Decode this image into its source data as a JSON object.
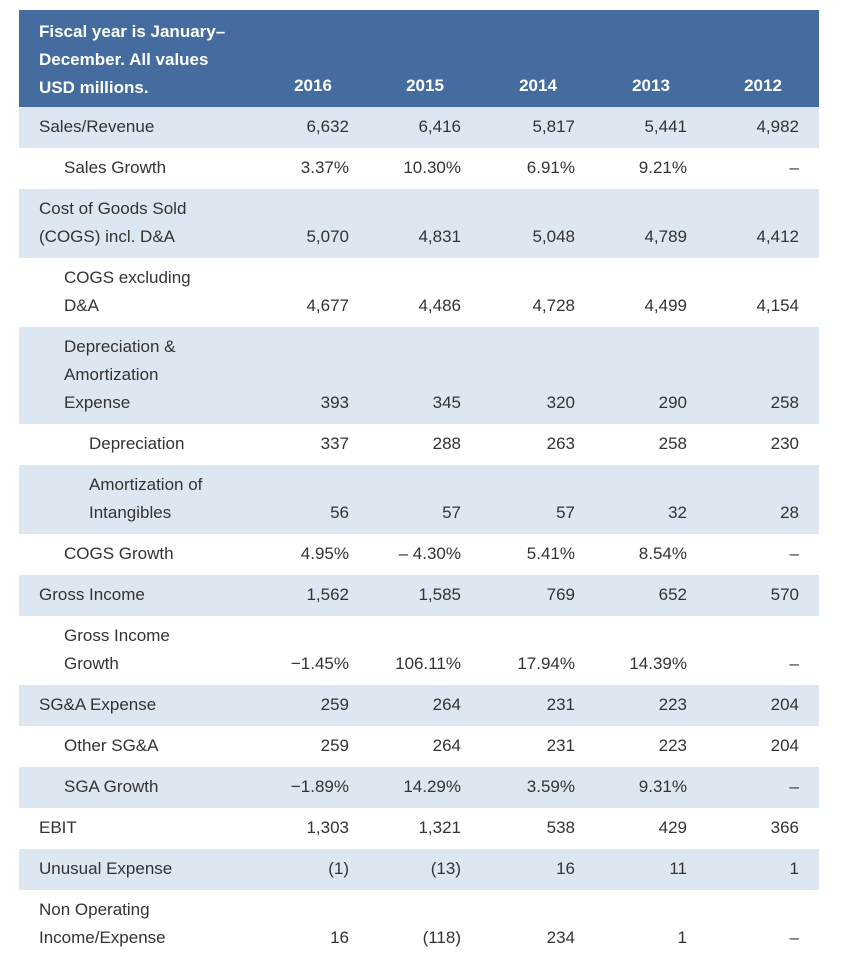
{
  "header": {
    "title": "Fiscal year is January–December. All values USD millions.",
    "years": [
      "2016",
      "2015",
      "2014",
      "2013",
      "2012"
    ]
  },
  "rows": [
    {
      "label": "Sales/Revenue",
      "values": [
        "6,632",
        "6,416",
        "5,817",
        "5,441",
        "4,982"
      ]
    },
    {
      "label": "Sales Growth",
      "values": [
        "3.37%",
        "10.30%",
        "6.91%",
        "9.21%",
        "–"
      ]
    },
    {
      "label": "Cost of Goods Sold (COGS) incl. D&A",
      "values": [
        "5,070",
        "4,831",
        "5,048",
        "4,789",
        "4,412"
      ]
    },
    {
      "label": "COGS excluding D&A",
      "values": [
        "4,677",
        "4,486",
        "4,728",
        "4,499",
        "4,154"
      ]
    },
    {
      "label": "Depreciation & Amortization Expense",
      "values": [
        "393",
        "345",
        "320",
        "290",
        "258"
      ]
    },
    {
      "label": "Depreciation",
      "values": [
        "337",
        "288",
        "263",
        "258",
        "230"
      ]
    },
    {
      "label": "Amortization of Intangibles",
      "values": [
        "56",
        "57",
        "57",
        "32",
        "28"
      ]
    },
    {
      "label": "COGS Growth",
      "values": [
        "4.95%",
        "– 4.30%",
        "5.41%",
        "8.54%",
        "–"
      ]
    },
    {
      "label": "Gross Income",
      "values": [
        "1,562",
        "1,585",
        "769",
        "652",
        "570"
      ]
    },
    {
      "label": "Gross Income Growth",
      "values": [
        "−1.45%",
        "106.11%",
        "17.94%",
        "14.39%",
        "–"
      ]
    },
    {
      "label": "SG&A Expense",
      "values": [
        "259",
        "264",
        "231",
        "223",
        "204"
      ]
    },
    {
      "label": "Other SG&A",
      "values": [
        "259",
        "264",
        "231",
        "223",
        "204"
      ]
    },
    {
      "label": "SGA Growth",
      "values": [
        "−1.89%",
        "14.29%",
        "3.59%",
        "9.31%",
        "–"
      ]
    },
    {
      "label": "EBIT",
      "values": [
        "1,303",
        "1,321",
        "538",
        "429",
        "366"
      ]
    },
    {
      "label": "Unusual Expense",
      "values": [
        "(1)",
        "(13)",
        "16",
        "11",
        "1"
      ]
    },
    {
      "label": "Non Operating Income/Expense",
      "values": [
        "16",
        "(118)",
        "234",
        "1",
        "–"
      ]
    }
  ]
}
